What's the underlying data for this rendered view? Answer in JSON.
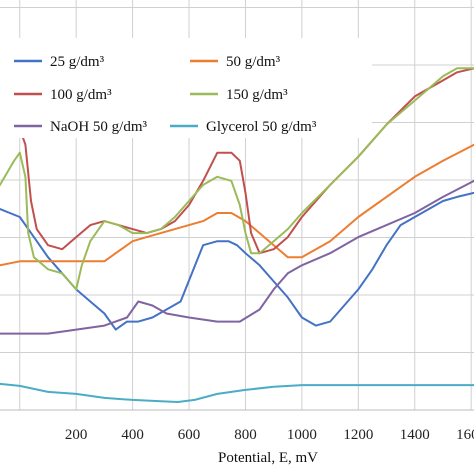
{
  "chart_data": {
    "type": "line",
    "xlabel": "Potential, E, mV",
    "ylabel": "",
    "xlim": [
      -70,
      1610
    ],
    "ylim": [
      0,
      1
    ],
    "grid": true,
    "legend_placement": "top",
    "x_ticks": [
      "200",
      "400",
      "600",
      "800",
      "1000",
      "1200",
      "1400",
      "1600"
    ],
    "series": [
      {
        "name": "25 g/dm³",
        "color": "#4472C4",
        "points": [
          [
            -70,
            0.5
          ],
          [
            0,
            0.48
          ],
          [
            50,
            0.43
          ],
          [
            100,
            0.38
          ],
          [
            150,
            0.34
          ],
          [
            200,
            0.3
          ],
          [
            250,
            0.27
          ],
          [
            300,
            0.24
          ],
          [
            340,
            0.2
          ],
          [
            380,
            0.22
          ],
          [
            420,
            0.22
          ],
          [
            470,
            0.23
          ],
          [
            520,
            0.25
          ],
          [
            570,
            0.27
          ],
          [
            610,
            0.34
          ],
          [
            650,
            0.41
          ],
          [
            700,
            0.42
          ],
          [
            740,
            0.42
          ],
          [
            770,
            0.41
          ],
          [
            800,
            0.39
          ],
          [
            850,
            0.36
          ],
          [
            900,
            0.32
          ],
          [
            950,
            0.28
          ],
          [
            1000,
            0.23
          ],
          [
            1050,
            0.21
          ],
          [
            1100,
            0.22
          ],
          [
            1150,
            0.26
          ],
          [
            1200,
            0.3
          ],
          [
            1250,
            0.35
          ],
          [
            1300,
            0.41
          ],
          [
            1350,
            0.46
          ],
          [
            1400,
            0.48
          ],
          [
            1450,
            0.5
          ],
          [
            1500,
            0.52
          ],
          [
            1550,
            0.53
          ],
          [
            1610,
            0.54
          ]
        ]
      },
      {
        "name": "50 g/dm³",
        "color": "#ED7D31",
        "points": [
          [
            -70,
            0.36
          ],
          [
            0,
            0.37
          ],
          [
            50,
            0.37
          ],
          [
            100,
            0.37
          ],
          [
            150,
            0.37
          ],
          [
            200,
            0.37
          ],
          [
            250,
            0.37
          ],
          [
            300,
            0.37
          ],
          [
            340,
            0.39
          ],
          [
            400,
            0.42
          ],
          [
            450,
            0.43
          ],
          [
            500,
            0.44
          ],
          [
            550,
            0.45
          ],
          [
            600,
            0.46
          ],
          [
            650,
            0.47
          ],
          [
            700,
            0.49
          ],
          [
            750,
            0.49
          ],
          [
            800,
            0.47
          ],
          [
            850,
            0.44
          ],
          [
            900,
            0.41
          ],
          [
            950,
            0.38
          ],
          [
            1000,
            0.38
          ],
          [
            1050,
            0.4
          ],
          [
            1100,
            0.42
          ],
          [
            1150,
            0.45
          ],
          [
            1200,
            0.48
          ],
          [
            1300,
            0.53
          ],
          [
            1400,
            0.58
          ],
          [
            1500,
            0.62
          ],
          [
            1610,
            0.66
          ]
        ]
      },
      {
        "name": "100 g/dm³",
        "color": "#C0504D",
        "points": [
          [
            -70,
            0.7
          ],
          [
            -20,
            0.72
          ],
          [
            0,
            0.7
          ],
          [
            20,
            0.66
          ],
          [
            40,
            0.52
          ],
          [
            60,
            0.45
          ],
          [
            100,
            0.41
          ],
          [
            150,
            0.4
          ],
          [
            200,
            0.43
          ],
          [
            250,
            0.46
          ],
          [
            300,
            0.47
          ],
          [
            350,
            0.46
          ],
          [
            400,
            0.45
          ],
          [
            450,
            0.44
          ],
          [
            500,
            0.45
          ],
          [
            550,
            0.47
          ],
          [
            600,
            0.51
          ],
          [
            650,
            0.57
          ],
          [
            700,
            0.64
          ],
          [
            750,
            0.64
          ],
          [
            780,
            0.62
          ],
          [
            800,
            0.54
          ],
          [
            820,
            0.44
          ],
          [
            850,
            0.39
          ],
          [
            900,
            0.4
          ],
          [
            950,
            0.43
          ],
          [
            1000,
            0.48
          ],
          [
            1100,
            0.56
          ],
          [
            1200,
            0.63
          ],
          [
            1300,
            0.71
          ],
          [
            1400,
            0.78
          ],
          [
            1500,
            0.82
          ],
          [
            1550,
            0.84
          ],
          [
            1610,
            0.85
          ]
        ]
      },
      {
        "name": "150 g/dm³",
        "color": "#9BBB59",
        "points": [
          [
            -70,
            0.56
          ],
          [
            -20,
            0.62
          ],
          [
            0,
            0.64
          ],
          [
            20,
            0.58
          ],
          [
            30,
            0.44
          ],
          [
            50,
            0.38
          ],
          [
            100,
            0.35
          ],
          [
            150,
            0.34
          ],
          [
            200,
            0.3
          ],
          [
            220,
            0.36
          ],
          [
            250,
            0.42
          ],
          [
            300,
            0.47
          ],
          [
            350,
            0.46
          ],
          [
            400,
            0.44
          ],
          [
            450,
            0.44
          ],
          [
            500,
            0.45
          ],
          [
            550,
            0.48
          ],
          [
            600,
            0.52
          ],
          [
            650,
            0.56
          ],
          [
            700,
            0.58
          ],
          [
            750,
            0.57
          ],
          [
            780,
            0.51
          ],
          [
            800,
            0.44
          ],
          [
            820,
            0.39
          ],
          [
            850,
            0.39
          ],
          [
            900,
            0.42
          ],
          [
            950,
            0.45
          ],
          [
            1000,
            0.49
          ],
          [
            1100,
            0.56
          ],
          [
            1200,
            0.63
          ],
          [
            1300,
            0.71
          ],
          [
            1400,
            0.77
          ],
          [
            1500,
            0.83
          ],
          [
            1550,
            0.85
          ],
          [
            1610,
            0.85
          ]
        ]
      },
      {
        "name": "NaOH 50  g/dm³",
        "color": "#8064A2",
        "points": [
          [
            -70,
            0.19
          ],
          [
            0,
            0.19
          ],
          [
            100,
            0.19
          ],
          [
            200,
            0.2
          ],
          [
            300,
            0.21
          ],
          [
            380,
            0.23
          ],
          [
            420,
            0.27
          ],
          [
            470,
            0.26
          ],
          [
            520,
            0.24
          ],
          [
            600,
            0.23
          ],
          [
            700,
            0.22
          ],
          [
            780,
            0.22
          ],
          [
            850,
            0.25
          ],
          [
            900,
            0.3
          ],
          [
            950,
            0.34
          ],
          [
            1000,
            0.36
          ],
          [
            1100,
            0.39
          ],
          [
            1200,
            0.43
          ],
          [
            1300,
            0.46
          ],
          [
            1400,
            0.49
          ],
          [
            1500,
            0.53
          ],
          [
            1610,
            0.57
          ]
        ]
      },
      {
        "name": "Glycerol 50 g/dm³",
        "color": "#4BACC6",
        "points": [
          [
            -70,
            0.065
          ],
          [
            0,
            0.06
          ],
          [
            100,
            0.045
          ],
          [
            200,
            0.04
          ],
          [
            300,
            0.03
          ],
          [
            400,
            0.025
          ],
          [
            500,
            0.022
          ],
          [
            560,
            0.02
          ],
          [
            620,
            0.025
          ],
          [
            700,
            0.04
          ],
          [
            800,
            0.05
          ],
          [
            900,
            0.058
          ],
          [
            1000,
            0.062
          ],
          [
            1100,
            0.062
          ],
          [
            1200,
            0.062
          ],
          [
            1300,
            0.062
          ],
          [
            1400,
            0.062
          ],
          [
            1500,
            0.062
          ],
          [
            1610,
            0.062
          ]
        ]
      }
    ]
  }
}
